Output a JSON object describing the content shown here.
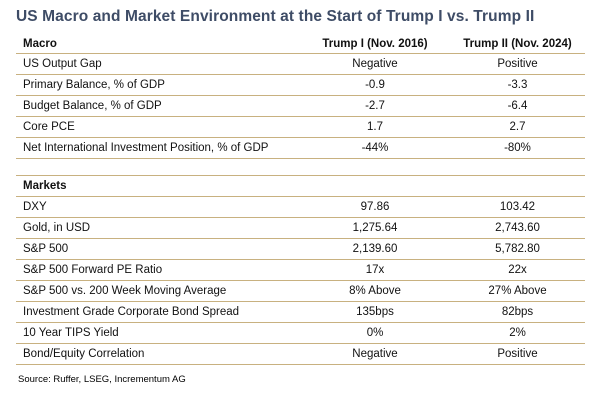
{
  "chart_data": {
    "type": "table",
    "title": "US Macro and Market Environment at the Start of Trump I vs. Trump II",
    "columns": [
      "Trump I (Nov. 2016)",
      "Trump II (Nov. 2024)"
    ],
    "sections": [
      {
        "name": "Macro",
        "rows": [
          [
            "US Output Gap",
            "Negative",
            "Positive"
          ],
          [
            "Primary Balance, % of GDP",
            "-0.9",
            "-3.3"
          ],
          [
            "Budget Balance, % of GDP",
            "-2.7",
            "-6.4"
          ],
          [
            "Core PCE",
            "1.7",
            "2.7"
          ],
          [
            "Net International Investment Position, % of GDP",
            "-44%",
            "-80%"
          ]
        ]
      },
      {
        "name": "Markets",
        "rows": [
          [
            "DXY",
            "97.86",
            "103.42"
          ],
          [
            "Gold, in USD",
            "1,275.64",
            "2,743.60"
          ],
          [
            "S&P 500",
            "2,139.60",
            "5,782.80"
          ],
          [
            "S&P 500 Forward PE Ratio",
            "17x",
            "22x"
          ],
          [
            "S&P 500 vs. 200 Week Moving Average",
            "8% Above",
            "27% Above"
          ],
          [
            "Investment Grade Corporate Bond Spread",
            "135bps",
            "82bps"
          ],
          [
            "10 Year TIPS Yield",
            "0%",
            "2%"
          ],
          [
            "Bond/Equity Correlation",
            "Negative",
            "Positive"
          ]
        ]
      }
    ],
    "source": "Source: Ruffer, LSEG, Incrementum AG",
    "layout": {
      "grid": "horizontal-rules-only",
      "value_alignment": "center",
      "label_alignment": "left"
    }
  },
  "colors": {
    "title_text": "#3e4c66",
    "rule_lines": "#c8b180",
    "body_text": "#111111",
    "background": "#ffffff"
  }
}
